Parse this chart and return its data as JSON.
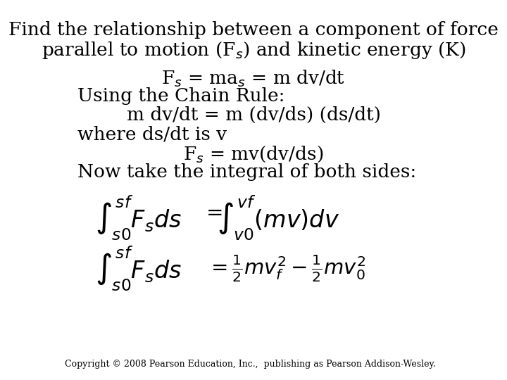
{
  "background_color": "#ffffff",
  "title_line1": "Find the relationship between a component of force",
  "title_line2": "parallel to motion (F$_s$) and kinetic energy (K)",
  "title_fontsize": 19,
  "body_fontsize": 19,
  "integral_fontsize": 22,
  "copyright": "Copyright © 2008 Pearson Education, Inc.,  publishing as Pearson Addison-Wesley.",
  "copyright_fontsize": 9
}
